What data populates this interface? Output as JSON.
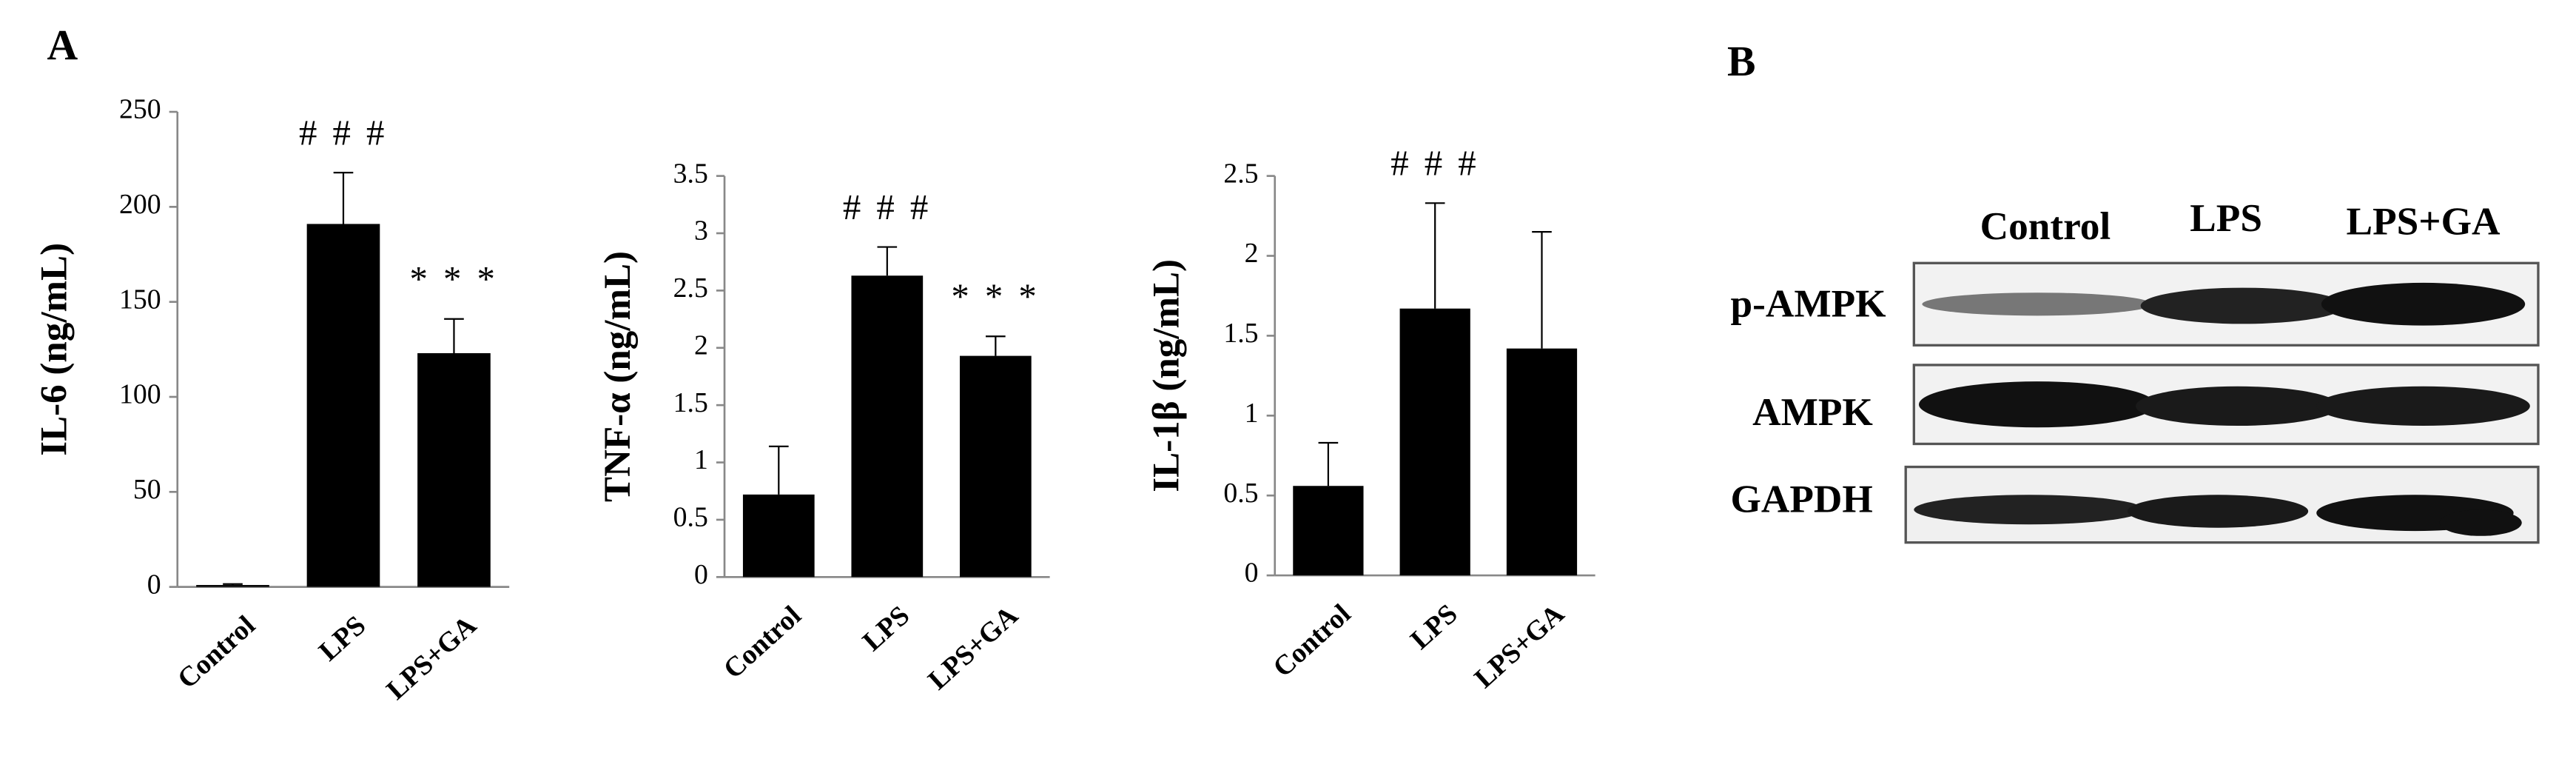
{
  "panel_labels": [
    "A",
    "B"
  ],
  "chart_data": [
    {
      "type": "bar",
      "y_label": "IL-6 (ng/mL)",
      "categories": [
        "Control",
        "LPS",
        "LPS+GA"
      ],
      "values": [
        1,
        191,
        123
      ],
      "errors": [
        0.5,
        27,
        18
      ],
      "significance": [
        null,
        "# # #",
        "* * *"
      ],
      "color": "#000000",
      "ylim": [
        0,
        250
      ],
      "yticks": [
        0,
        50,
        100,
        150,
        200,
        250
      ]
    },
    {
      "type": "bar",
      "y_label": "TNF-α (ng/mL)",
      "categories": [
        "Control",
        "LPS",
        "LPS+GA"
      ],
      "values": [
        0.72,
        2.63,
        1.93
      ],
      "errors": [
        0.42,
        0.25,
        0.17
      ],
      "significance": [
        null,
        "# # #",
        "* * *"
      ],
      "color": "#000000",
      "ylim": [
        0,
        3.5
      ],
      "yticks": [
        0,
        0.5,
        1,
        1.5,
        2,
        2.5,
        3,
        3.5
      ]
    },
    {
      "type": "bar",
      "y_label": "IL-1β (ng/mL)",
      "categories": [
        "Control",
        "LPS",
        "LPS+GA"
      ],
      "values": [
        0.56,
        1.67,
        1.42
      ],
      "errors": [
        0.27,
        0.66,
        0.73
      ],
      "significance": [
        null,
        "# # #",
        null
      ],
      "color": "#000000",
      "ylim": [
        0,
        2.5
      ],
      "yticks": [
        0,
        0.5,
        1,
        1.5,
        2,
        2.5
      ]
    }
  ],
  "blot": {
    "columns": [
      "Control",
      "LPS",
      "LPS+GA"
    ],
    "rows": [
      "p-AMPK",
      "AMPK",
      "GAPDH"
    ]
  }
}
